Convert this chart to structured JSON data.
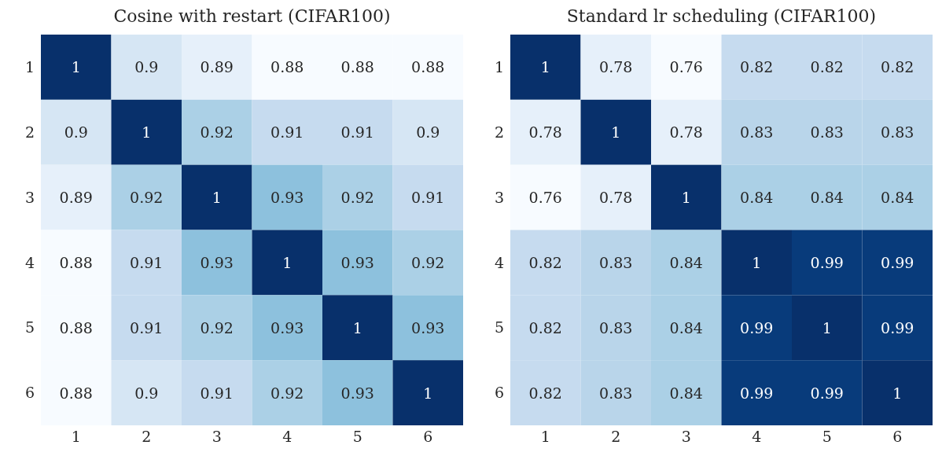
{
  "chart_data": [
    {
      "type": "heatmap",
      "title": "Cosine with restart (CIFAR100)",
      "categories": [
        "1",
        "2",
        "3",
        "4",
        "5",
        "6"
      ],
      "y_categories": [
        "1",
        "2",
        "3",
        "4",
        "5",
        "6"
      ],
      "data_labels": true,
      "cells": [
        [
          1,
          0.9,
          0.89,
          0.88,
          0.88,
          0.88
        ],
        [
          0.9,
          1,
          0.92,
          0.91,
          0.91,
          0.9
        ],
        [
          0.89,
          0.92,
          1,
          0.93,
          0.92,
          0.91
        ],
        [
          0.88,
          0.91,
          0.93,
          1,
          0.93,
          0.92
        ],
        [
          0.88,
          0.91,
          0.92,
          0.93,
          1,
          0.93
        ],
        [
          0.88,
          0.9,
          0.91,
          0.92,
          0.93,
          1
        ]
      ]
    },
    {
      "type": "heatmap",
      "title": "Standard lr scheduling (CIFAR100)",
      "categories": [
        "1",
        "2",
        "3",
        "4",
        "5",
        "6"
      ],
      "y_categories": [
        "1",
        "2",
        "3",
        "4",
        "5",
        "6"
      ],
      "data_labels": true,
      "cells": [
        [
          1,
          0.78,
          0.76,
          0.82,
          0.82,
          0.82
        ],
        [
          0.78,
          1,
          0.78,
          0.83,
          0.83,
          0.83
        ],
        [
          0.76,
          0.78,
          1,
          0.84,
          0.84,
          0.84
        ],
        [
          0.82,
          0.83,
          0.84,
          1,
          0.99,
          0.99
        ],
        [
          0.82,
          0.83,
          0.84,
          0.99,
          1,
          0.99
        ],
        [
          0.82,
          0.83,
          0.84,
          0.99,
          0.99,
          1
        ]
      ]
    }
  ]
}
